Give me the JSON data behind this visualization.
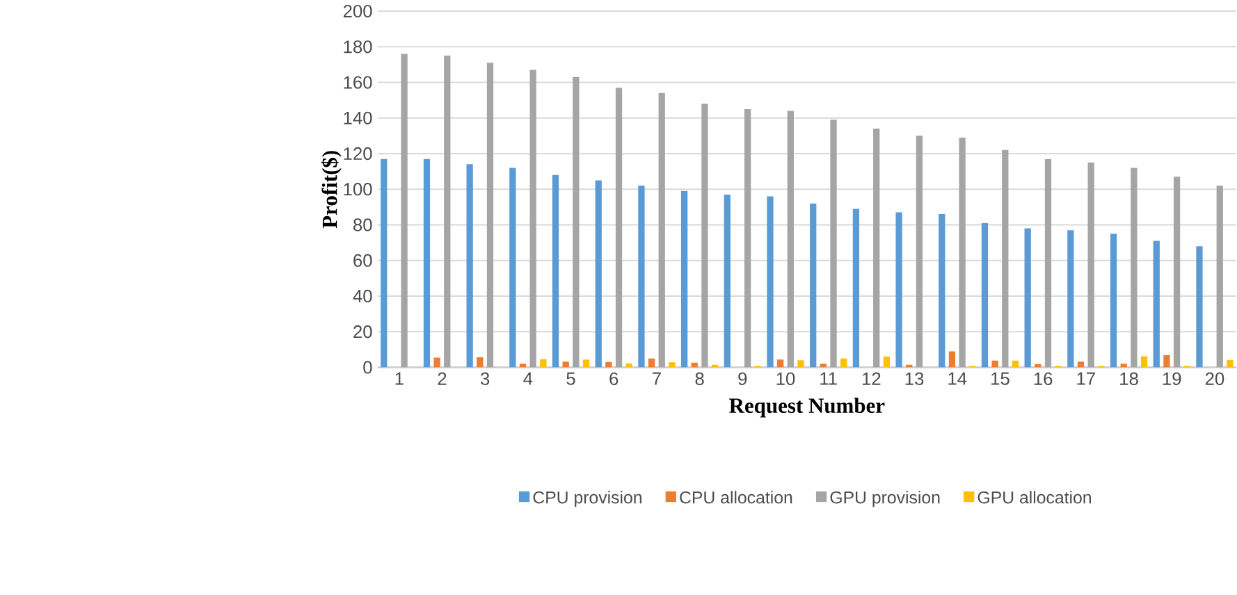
{
  "chart_data": {
    "type": "bar",
    "xlabel": "Request Number",
    "ylabel": "Profit($)",
    "categories": [
      "1",
      "2",
      "3",
      "4",
      "5",
      "6",
      "7",
      "8",
      "9",
      "10",
      "11",
      "12",
      "13",
      "14",
      "15",
      "16",
      "17",
      "18",
      "19",
      "20"
    ],
    "series": [
      {
        "name": "CPU provision",
        "color": "#5b9bd5",
        "values": [
          117,
          117,
          114,
          112,
          108,
          105,
          102,
          99,
          97,
          96,
          92,
          89,
          87,
          86,
          81,
          78,
          77,
          75,
          71,
          68
        ]
      },
      {
        "name": "CPU allocation",
        "color": "#ed7d31",
        "values": [
          0,
          5.4,
          5.6,
          2.0,
          3.2,
          3.0,
          5.0,
          2.6,
          0,
          4.4,
          2.0,
          0,
          1.4,
          9.0,
          3.8,
          1.8,
          3.2,
          2.0,
          6.8,
          0
        ]
      },
      {
        "name": "GPU provision",
        "color": "#a5a5a5",
        "values": [
          176,
          175,
          171,
          167,
          163,
          157,
          154,
          148,
          145,
          144,
          139,
          134,
          130,
          129,
          122,
          117,
          115,
          112,
          107,
          102
        ]
      },
      {
        "name": "GPU allocation",
        "color": "#ffc000",
        "values": [
          0,
          0,
          0,
          4.6,
          4.4,
          2.2,
          2.8,
          1.4,
          0.8,
          4.0,
          5.0,
          6.0,
          0,
          0.8,
          3.8,
          0.8,
          0.8,
          6.2,
          0.8,
          4.2
        ]
      }
    ],
    "ylim": [
      0,
      200
    ],
    "yticks": [
      0,
      20,
      40,
      60,
      80,
      100,
      120,
      140,
      160,
      180,
      200
    ],
    "grid": "y",
    "legend": "bottom"
  }
}
